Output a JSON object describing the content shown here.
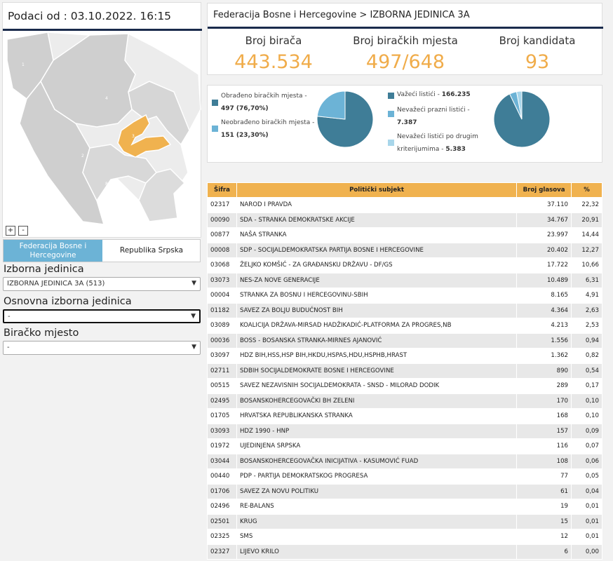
{
  "left": {
    "timestamp": "Podaci od : 03.10.2022. 16:15",
    "map_labels": [
      "2",
      "3",
      "4",
      "8",
      "1"
    ],
    "zoom_in": "+",
    "zoom_out": "-",
    "tabs": [
      "Federacija Bosne i Hercegovine",
      "Republika Srpska"
    ],
    "selectors": [
      {
        "label": "Izborna jedinica",
        "value": "IZBORNA JEDINICA 3A (513)"
      },
      {
        "label": "Osnovna izborna jedinica",
        "value": "-"
      },
      {
        "label": "Biračko mjesto",
        "value": "-"
      }
    ]
  },
  "header": {
    "breadcrumb": "Federacija Bosne i Hercegovine > IZBORNA JEDINICA 3A",
    "stats": [
      {
        "label": "Broj birača",
        "value": "443.534"
      },
      {
        "label": "Broj biračkih mjesta",
        "value": "497/648"
      },
      {
        "label": "Broj kandidata",
        "value": "93"
      }
    ]
  },
  "colors": {
    "dark": "#3f7d97",
    "light": "#6cb3d6",
    "lighter": "#a8d6ea",
    "accent": "#f0ac4a",
    "navy": "#1a2b4c",
    "table_header": "#f0b24f"
  },
  "pie1": {
    "legend": [
      {
        "label": "Obrađeno biračkih mjesta -",
        "value": "497 (76,70%)"
      },
      {
        "label": "Neobrađeno biračkih mjesta -",
        "value": "151 (23,30%)"
      }
    ],
    "fractions": [
      0.767,
      0.233
    ]
  },
  "pie2": {
    "legend": [
      {
        "label": "Važeći listići -",
        "value": "166.235"
      },
      {
        "label": "Nevažeći prazni listići -",
        "value": "7.387"
      },
      {
        "label": "Nevažeći listići po drugim kriterijumima -",
        "value": "5.383"
      }
    ],
    "fractions": [
      0.9286,
      0.0413,
      0.0301
    ]
  },
  "table": {
    "headers": [
      "Šifra",
      "Politički subjekt",
      "Broj glasova",
      "%"
    ],
    "rows": [
      [
        "02317",
        "NAROD I PRAVDA",
        "37.110",
        "22,32"
      ],
      [
        "00090",
        "SDA - STRANKA DEMOKRATSKE AKCIJE",
        "34.767",
        "20,91"
      ],
      [
        "00877",
        "NAŠA STRANKA",
        "23.997",
        "14,44"
      ],
      [
        "00008",
        "SDP - SOCIJALDEMOKRATSKA PARTIJA BOSNE I HERCEGOVINE",
        "20.402",
        "12,27"
      ],
      [
        "03068",
        "ŽELJKO KOMŠIĆ - ZA GRAĐANSKU DRŽAVU - DF/GS",
        "17.722",
        "10,66"
      ],
      [
        "03073",
        "NES-ZA NOVE GENERACIJE",
        "10.489",
        "6,31"
      ],
      [
        "00004",
        "STRANKA ZA BOSNU I HERCEGOVINU-SBIH",
        "8.165",
        "4,91"
      ],
      [
        "01182",
        "SAVEZ ZA BOLJU BUDUĆNOST BIH",
        "4.364",
        "2,63"
      ],
      [
        "03089",
        "KOALICIJA DRŽAVA-MIRSAD HADŽIKADIĆ-PLATFORMA ZA PROGRES,NB",
        "4.213",
        "2,53"
      ],
      [
        "00036",
        "BOSS - BOSANSKA STRANKA-MIRNES AJANOVIĆ",
        "1.556",
        "0,94"
      ],
      [
        "03097",
        "HDZ BIH,HSS,HSP BIH,HKDU,HSPAS,HDU,HSPHB,HRAST",
        "1.362",
        "0,82"
      ],
      [
        "02711",
        "SDBIH SOCIJALDEMOKRATE BOSNE I HERCEGOVINE",
        "890",
        "0,54"
      ],
      [
        "00515",
        "SAVEZ NEZAVISNIH SOCIJALDEMOKRATA - SNSD - MILORAD DODIK",
        "289",
        "0,17"
      ],
      [
        "02495",
        "BOSANSKOHERCEGOVAČKI BH ZELENI",
        "170",
        "0,10"
      ],
      [
        "01705",
        "HRVATSKA REPUBLIKANSKA STRANKA",
        "168",
        "0,10"
      ],
      [
        "03093",
        "HDZ 1990 - HNP",
        "157",
        "0,09"
      ],
      [
        "01972",
        "UJEDINJENA SRPSKA",
        "116",
        "0,07"
      ],
      [
        "03044",
        "BOSANSKOHERCEGOVAČKA INICIJATIVA - KASUMOVIĆ FUAD",
        "108",
        "0,06"
      ],
      [
        "00440",
        "PDP - PARTIJA DEMOKRATSKOG PROGRESA",
        "77",
        "0,05"
      ],
      [
        "01706",
        "SAVEZ ZA NOVU POLITIKU",
        "61",
        "0,04"
      ],
      [
        "02496",
        "RE-BALANS",
        "19",
        "0,01"
      ],
      [
        "02501",
        "KRUG",
        "15",
        "0,01"
      ],
      [
        "02325",
        "SMS",
        "12",
        "0,01"
      ],
      [
        "02327",
        "LIJEVO KRILO",
        "6",
        "0,00"
      ]
    ]
  }
}
